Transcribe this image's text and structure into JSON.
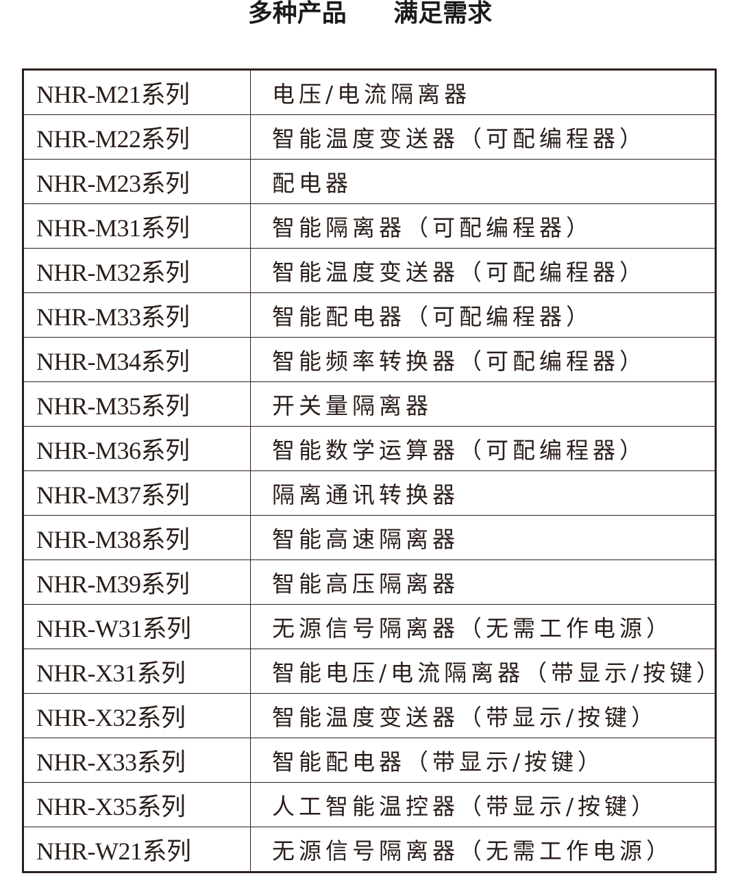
{
  "title": {
    "part1": "多种产品",
    "part2": "满足需求"
  },
  "rows": [
    {
      "model": "NHR-M21系列",
      "desc": "电压/电流隔离器"
    },
    {
      "model": "NHR-M22系列",
      "desc": "智能温度变送器（可配编程器）"
    },
    {
      "model": "NHR-M23系列",
      "desc": "配电器"
    },
    {
      "model": "NHR-M31系列",
      "desc": "智能隔离器（可配编程器）"
    },
    {
      "model": "NHR-M32系列",
      "desc": "智能温度变送器（可配编程器）"
    },
    {
      "model": "NHR-M33系列",
      "desc": "智能配电器（可配编程器）"
    },
    {
      "model": "NHR-M34系列",
      "desc": "智能频率转换器（可配编程器）"
    },
    {
      "model": "NHR-M35系列",
      "desc": "开关量隔离器"
    },
    {
      "model": "NHR-M36系列",
      "desc": "智能数学运算器（可配编程器）"
    },
    {
      "model": "NHR-M37系列",
      "desc": "隔离通讯转换器"
    },
    {
      "model": "NHR-M38系列",
      "desc": "智能高速隔离器"
    },
    {
      "model": "NHR-M39系列",
      "desc": "智能高压隔离器"
    },
    {
      "model": "NHR-W31系列",
      "desc": "无源信号隔离器（无需工作电源）"
    },
    {
      "model": "NHR-X31系列",
      "desc": "智能电压/电流隔离器（带显示/按键）"
    },
    {
      "model": "NHR-X32系列",
      "desc": "智能温度变送器（带显示/按键）"
    },
    {
      "model": "NHR-X33系列",
      "desc": "智能配电器（带显示/按键）"
    },
    {
      "model": "NHR-X35系列",
      "desc": "人工智能温控器（带显示/按键）"
    },
    {
      "model": "NHR-W21系列",
      "desc": "无源信号隔离器（无需工作电源）"
    }
  ]
}
